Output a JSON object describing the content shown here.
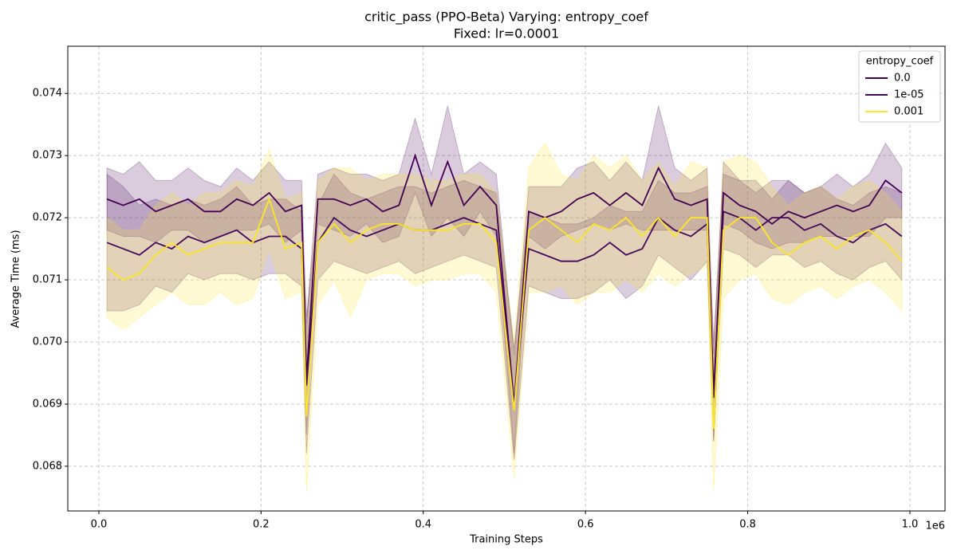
{
  "chart_data": {
    "type": "line",
    "title": "critic_pass (PPO-Beta) Varying: entropy_coef",
    "subtitle": "Fixed: lr=0.0001",
    "x_label": "Training Steps",
    "y_label": "Average Time (ms)",
    "x_offset_label": "1e6",
    "legend_title": "entropy_coef",
    "legend": "upper right",
    "grid": true,
    "xlim": [
      -38300,
      1043300
    ],
    "ylim": [
      0.06728,
      0.07476
    ],
    "xticks": [
      {
        "value": 0,
        "label": "0.0"
      },
      {
        "value": 200000,
        "label": "0.2"
      },
      {
        "value": 400000,
        "label": "0.4"
      },
      {
        "value": 600000,
        "label": "0.6"
      },
      {
        "value": 800000,
        "label": "0.8"
      },
      {
        "value": 1000000,
        "label": "1.0"
      }
    ],
    "yticks": [
      0.068,
      0.069,
      {
        "value": 0.07,
        "label": "0.070"
      },
      0.071,
      0.072,
      0.073,
      0.074
    ],
    "x": [
      10000,
      30000,
      50000,
      70000,
      90000,
      110000,
      130000,
      150000,
      170000,
      190000,
      210000,
      230000,
      250000,
      256000,
      270000,
      290000,
      310000,
      330000,
      350000,
      370000,
      390000,
      410000,
      430000,
      450000,
      470000,
      490000,
      512000,
      530000,
      550000,
      570000,
      590000,
      610000,
      630000,
      650000,
      670000,
      690000,
      710000,
      730000,
      750000,
      758000,
      770000,
      790000,
      810000,
      830000,
      850000,
      870000,
      890000,
      910000,
      930000,
      950000,
      970000,
      990000
    ],
    "series": [
      {
        "name": "0.0",
        "color": "#440154",
        "values": [
          0.0723,
          0.0722,
          0.0723,
          0.0721,
          0.0722,
          0.0723,
          0.0721,
          0.0721,
          0.0723,
          0.0722,
          0.0724,
          0.0721,
          0.0722,
          0.0694,
          0.0723,
          0.0723,
          0.0722,
          0.0723,
          0.0721,
          0.0722,
          0.073,
          0.0722,
          0.0729,
          0.0722,
          0.0725,
          0.0722,
          0.069,
          0.0721,
          0.072,
          0.0721,
          0.0723,
          0.0724,
          0.0722,
          0.0724,
          0.0722,
          0.0728,
          0.0723,
          0.0722,
          0.0723,
          0.0691,
          0.0724,
          0.0722,
          0.0721,
          0.0719,
          0.0721,
          0.072,
          0.0721,
          0.0722,
          0.0721,
          0.0722,
          0.0726,
          0.0724
        ],
        "errors": [
          0.0005,
          0.0005,
          0.0006,
          0.0005,
          0.0004,
          0.0005,
          0.0005,
          0.0004,
          0.0005,
          0.0004,
          0.0005,
          0.0005,
          0.0004,
          0.0009,
          0.0004,
          0.0005,
          0.0005,
          0.0004,
          0.0005,
          0.0005,
          0.0006,
          0.0005,
          0.0009,
          0.0005,
          0.0004,
          0.0005,
          0.0008,
          0.0004,
          0.0005,
          0.0004,
          0.0005,
          0.0005,
          0.0004,
          0.0005,
          0.0004,
          0.001,
          0.0005,
          0.0004,
          0.0005,
          0.0007,
          0.0005,
          0.0004,
          0.0005,
          0.0004,
          0.0005,
          0.0004,
          0.0004,
          0.0005,
          0.0004,
          0.0005,
          0.0006,
          0.0004
        ]
      },
      {
        "name": "1e-05",
        "color": "#46085c",
        "values": [
          0.0716,
          0.0715,
          0.0714,
          0.0716,
          0.0715,
          0.0717,
          0.0716,
          0.0717,
          0.0718,
          0.0716,
          0.0717,
          0.0717,
          0.0715,
          0.0693,
          0.0716,
          0.072,
          0.0718,
          0.0717,
          0.0718,
          0.0719,
          0.0718,
          0.0718,
          0.0719,
          0.072,
          0.0719,
          0.0718,
          0.069,
          0.0715,
          0.0714,
          0.0713,
          0.0713,
          0.0714,
          0.0716,
          0.0714,
          0.0715,
          0.072,
          0.0718,
          0.0717,
          0.0719,
          0.0692,
          0.0721,
          0.072,
          0.0718,
          0.072,
          0.072,
          0.0718,
          0.0719,
          0.0717,
          0.0716,
          0.0718,
          0.0719,
          0.0717
        ],
        "errors": [
          0.0011,
          0.001,
          0.0008,
          0.0007,
          0.0007,
          0.0006,
          0.0006,
          0.0006,
          0.0007,
          0.0006,
          0.0006,
          0.0006,
          0.0006,
          0.0011,
          0.0006,
          0.0007,
          0.0006,
          0.0006,
          0.0006,
          0.0006,
          0.0007,
          0.0006,
          0.0006,
          0.0006,
          0.0006,
          0.0006,
          0.0009,
          0.0006,
          0.0006,
          0.0006,
          0.0006,
          0.0006,
          0.0006,
          0.0007,
          0.0006,
          0.0006,
          0.0006,
          0.0007,
          0.0006,
          0.0008,
          0.0006,
          0.0006,
          0.0006,
          0.0006,
          0.0006,
          0.0006,
          0.0006,
          0.0006,
          0.0006,
          0.0006,
          0.0006,
          0.0007
        ]
      },
      {
        "name": "0.001",
        "color": "#fde725",
        "values": [
          0.0712,
          0.071,
          0.0711,
          0.0714,
          0.0716,
          0.0714,
          0.0715,
          0.0716,
          0.0716,
          0.0716,
          0.0723,
          0.0715,
          0.0716,
          0.0688,
          0.0716,
          0.0719,
          0.0716,
          0.0718,
          0.0719,
          0.0719,
          0.0718,
          0.0718,
          0.0718,
          0.0719,
          0.0719,
          0.0716,
          0.0689,
          0.0718,
          0.072,
          0.0718,
          0.0716,
          0.0719,
          0.0718,
          0.072,
          0.0717,
          0.072,
          0.0717,
          0.072,
          0.072,
          0.0686,
          0.0718,
          0.072,
          0.072,
          0.0716,
          0.0714,
          0.0716,
          0.0717,
          0.0715,
          0.0717,
          0.0718,
          0.0716,
          0.0713
        ],
        "errors": [
          0.0008,
          0.0008,
          0.0007,
          0.0008,
          0.0008,
          0.0008,
          0.0009,
          0.0008,
          0.001,
          0.0009,
          0.0008,
          0.0008,
          0.0008,
          0.0012,
          0.001,
          0.0009,
          0.0012,
          0.0008,
          0.0008,
          0.0008,
          0.0009,
          0.0008,
          0.0008,
          0.0008,
          0.0008,
          0.0008,
          0.0011,
          0.001,
          0.0012,
          0.0009,
          0.001,
          0.0011,
          0.001,
          0.001,
          0.0009,
          0.0009,
          0.0008,
          0.0009,
          0.0008,
          0.001,
          0.0011,
          0.001,
          0.0009,
          0.0009,
          0.0008,
          0.0008,
          0.0008,
          0.0008,
          0.0008,
          0.0008,
          0.0008,
          0.0008
        ]
      }
    ]
  }
}
